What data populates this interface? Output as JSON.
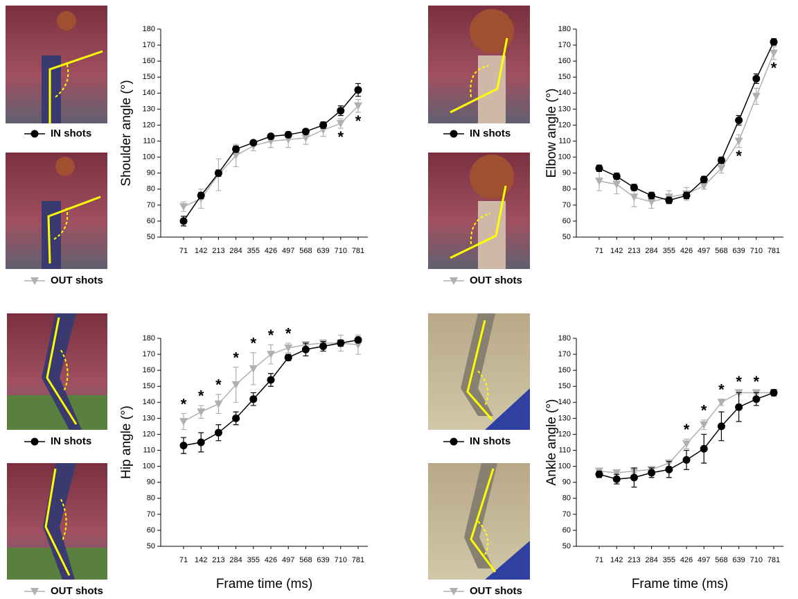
{
  "chart_data": [
    {
      "type": "line",
      "y_label": "Shoulder angle (°)",
      "categories": [
        "71",
        "142",
        "213",
        "284",
        "355",
        "426",
        "497",
        "568",
        "639",
        "710",
        "781"
      ],
      "series": [
        {
          "name": "IN shots",
          "color": "#000000",
          "values": [
            60,
            76,
            90,
            105,
            109,
            113,
            114,
            116,
            120,
            129,
            142
          ],
          "errors": [
            3,
            2,
            2,
            2,
            1,
            1,
            1,
            1,
            2,
            3,
            4
          ]
        },
        {
          "name": "OUT shots",
          "color": "#b0b0b0",
          "values": [
            69,
            74,
            89,
            101,
            107,
            110,
            111,
            112,
            117,
            121,
            132
          ],
          "errors": [
            3,
            6,
            10,
            7,
            3,
            4,
            5,
            4,
            4,
            3,
            4
          ]
        }
      ],
      "significance": [
        null,
        null,
        null,
        null,
        null,
        null,
        null,
        null,
        null,
        "*",
        "*"
      ],
      "ylim": [
        50,
        180
      ],
      "yticks": [
        50,
        60,
        70,
        80,
        90,
        100,
        110,
        120,
        130,
        140,
        150,
        160,
        170,
        180
      ]
    },
    {
      "type": "line",
      "y_label": "Elbow angle (°)",
      "categories": [
        "71",
        "142",
        "213",
        "284",
        "355",
        "426",
        "497",
        "568",
        "639",
        "710",
        "781"
      ],
      "series": [
        {
          "name": "IN shots",
          "color": "#000000",
          "values": [
            93,
            88,
            81,
            76,
            73,
            76,
            86,
            98,
            123,
            149,
            172
          ],
          "errors": [
            2,
            2,
            2,
            2,
            2,
            2,
            2,
            2,
            3,
            3,
            2
          ]
        },
        {
          "name": "OUT shots",
          "color": "#b0b0b0",
          "values": [
            85,
            83,
            75,
            72,
            75,
            77,
            82,
            93,
            110,
            138,
            165
          ],
          "errors": [
            6,
            6,
            6,
            4,
            4,
            4,
            2,
            3,
            4,
            5,
            4
          ]
        }
      ],
      "significance": [
        null,
        null,
        null,
        null,
        null,
        null,
        null,
        null,
        "*",
        null,
        "*"
      ],
      "ylim": [
        50,
        180
      ],
      "yticks": [
        50,
        60,
        70,
        80,
        90,
        100,
        110,
        120,
        130,
        140,
        150,
        160,
        170,
        180
      ]
    },
    {
      "type": "line",
      "y_label": "Hip angle (°)",
      "x_label": "Frame time (ms)",
      "categories": [
        "71",
        "142",
        "213",
        "284",
        "355",
        "426",
        "497",
        "568",
        "639",
        "710",
        "781"
      ],
      "series": [
        {
          "name": "IN shots",
          "color": "#000000",
          "values": [
            113,
            115,
            121,
            130,
            142,
            154,
            168,
            173,
            175,
            177,
            179
          ],
          "errors": [
            5,
            6,
            5,
            4,
            4,
            4,
            2,
            4,
            3,
            2,
            1
          ]
        },
        {
          "name": "OUT shots",
          "color": "#b0b0b0",
          "values": [
            128,
            134,
            139,
            151,
            161,
            170,
            174,
            176,
            177,
            177,
            176
          ],
          "errors": [
            5,
            4,
            6,
            11,
            10,
            6,
            3,
            2,
            2,
            5,
            6
          ]
        }
      ],
      "significance": [
        "*",
        "*",
        "*",
        "*",
        "*",
        "*",
        "*",
        null,
        null,
        null,
        null
      ],
      "ylim": [
        50,
        180
      ],
      "yticks": [
        50,
        60,
        70,
        80,
        90,
        100,
        110,
        120,
        130,
        140,
        150,
        160,
        170,
        180
      ]
    },
    {
      "type": "line",
      "y_label": "Ankle angle (°)",
      "x_label": "Frame time (ms)",
      "categories": [
        "71",
        "142",
        "213",
        "284",
        "355",
        "426",
        "497",
        "568",
        "639",
        "710",
        "781"
      ],
      "series": [
        {
          "name": "IN shots",
          "color": "#000000",
          "values": [
            95,
            92,
            93,
            96,
            98,
            104,
            111,
            125,
            137,
            142,
            146
          ],
          "errors": [
            2,
            3,
            6,
            3,
            5,
            6,
            9,
            9,
            9,
            4,
            2
          ]
        },
        {
          "name": "OUT shots",
          "color": "#b0b0b0",
          "values": [
            97,
            96,
            97,
            98,
            102,
            114,
            126,
            140,
            146,
            146,
            146
          ],
          "errors": [
            1,
            1,
            1,
            1,
            2,
            3,
            3,
            2,
            1,
            1,
            1
          ]
        }
      ],
      "significance": [
        null,
        null,
        null,
        null,
        null,
        "*",
        "*",
        "*",
        "*",
        "*",
        null
      ],
      "ylim": [
        50,
        180
      ],
      "yticks": [
        50,
        60,
        70,
        80,
        90,
        100,
        110,
        120,
        130,
        140,
        150,
        160,
        170,
        180
      ]
    }
  ]
}
